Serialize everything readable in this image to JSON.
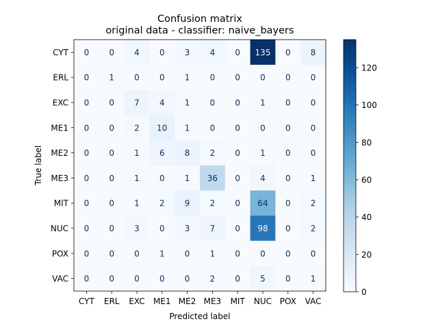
{
  "chart_data": {
    "type": "heatmap",
    "title": "Confusion matrix",
    "subtitle": "original data - classifier: naive_bayers",
    "xlabel": "Predicted label",
    "ylabel": "True label",
    "x_categories": [
      "CYT",
      "ERL",
      "EXC",
      "ME1",
      "ME2",
      "ME3",
      "MIT",
      "NUC",
      "POX",
      "VAC"
    ],
    "y_categories": [
      "CYT",
      "ERL",
      "EXC",
      "ME1",
      "ME2",
      "ME3",
      "MIT",
      "NUC",
      "POX",
      "VAC"
    ],
    "values": [
      [
        0,
        0,
        4,
        0,
        3,
        4,
        0,
        135,
        0,
        8
      ],
      [
        0,
        1,
        0,
        0,
        1,
        0,
        0,
        0,
        0,
        0
      ],
      [
        0,
        0,
        7,
        4,
        1,
        0,
        0,
        1,
        0,
        0
      ],
      [
        0,
        0,
        2,
        10,
        1,
        0,
        0,
        0,
        0,
        0
      ],
      [
        0,
        0,
        1,
        6,
        8,
        2,
        0,
        1,
        0,
        0
      ],
      [
        0,
        0,
        1,
        0,
        1,
        36,
        0,
        4,
        0,
        1
      ],
      [
        0,
        0,
        1,
        2,
        9,
        2,
        0,
        64,
        0,
        2
      ],
      [
        0,
        0,
        3,
        0,
        3,
        7,
        0,
        98,
        0,
        2
      ],
      [
        0,
        0,
        0,
        1,
        0,
        1,
        0,
        0,
        0,
        0
      ],
      [
        0,
        0,
        0,
        0,
        0,
        2,
        0,
        5,
        0,
        1
      ]
    ],
    "colormap": "Blues",
    "colorbar": {
      "range": [
        0,
        135
      ],
      "ticks": [
        0,
        20,
        40,
        60,
        80,
        100,
        120
      ]
    },
    "grid": false
  }
}
